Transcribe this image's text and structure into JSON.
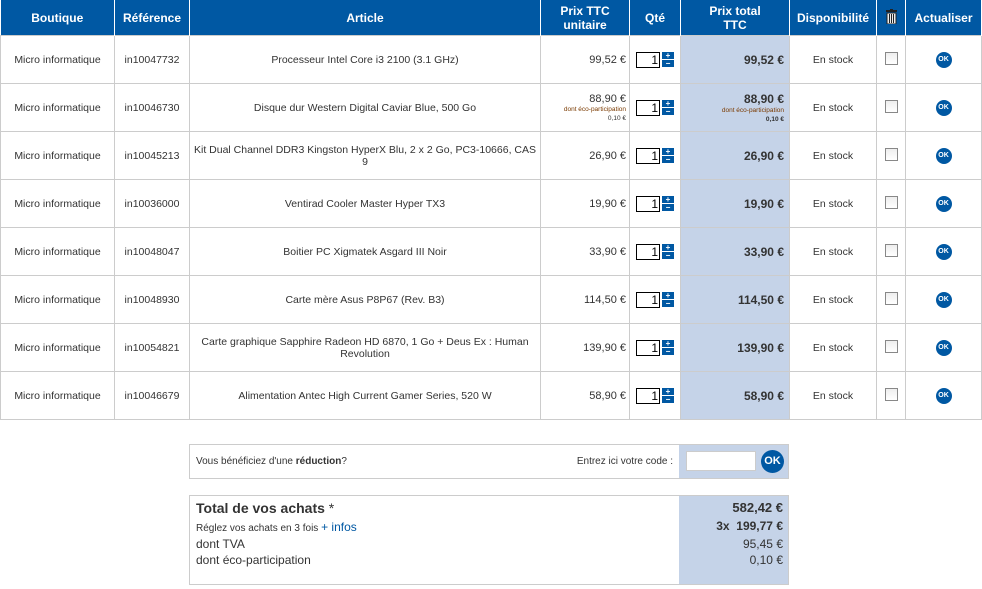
{
  "headers": {
    "boutique": "Boutique",
    "reference": "Référence",
    "article": "Article",
    "unit_price_1": "Prix TTC",
    "unit_price_2": "unitaire",
    "qty": "Qté",
    "total_1": "Prix total",
    "total_2": "TTC",
    "availability": "Disponibilité",
    "trash_icon": "trash-icon",
    "update": "Actualiser"
  },
  "rows": [
    {
      "shop": "Micro informatique",
      "ref": "in10047732",
      "article": "Processeur Intel Core i3 2100 (3.1 GHz)",
      "unit": "99,52 €",
      "qty": "1",
      "total": "99,52 €",
      "stock": "En stock"
    },
    {
      "shop": "Micro informatique",
      "ref": "in10046730",
      "article": "Disque dur Western Digital Caviar Blue, 500 Go",
      "unit": "88,90 €",
      "eco_label": "dont éco-participation",
      "eco_value": "0,10 €",
      "qty": "1",
      "total": "88,90 €",
      "stock": "En stock"
    },
    {
      "shop": "Micro informatique",
      "ref": "in10045213",
      "article": "Kit Dual Channel DDR3 Kingston HyperX Blu, 2 x 2 Go, PC3-10666, CAS 9",
      "unit": "26,90 €",
      "qty": "1",
      "total": "26,90 €",
      "stock": "En stock"
    },
    {
      "shop": "Micro informatique",
      "ref": "in10036000",
      "article": "Ventirad Cooler Master Hyper TX3",
      "unit": "19,90 €",
      "qty": "1",
      "total": "19,90 €",
      "stock": "En stock"
    },
    {
      "shop": "Micro informatique",
      "ref": "in10048047",
      "article": "Boitier PC Xigmatek Asgard III Noir",
      "unit": "33,90 €",
      "qty": "1",
      "total": "33,90 €",
      "stock": "En stock"
    },
    {
      "shop": "Micro informatique",
      "ref": "in10048930",
      "article": "Carte mère Asus P8P67 (Rev. B3)",
      "unit": "114,50 €",
      "qty": "1",
      "total": "114,50 €",
      "stock": "En stock"
    },
    {
      "shop": "Micro informatique",
      "ref": "in10054821",
      "article": "Carte graphique Sapphire Radeon HD 6870, 1 Go + Deus Ex : Human Revolution",
      "unit": "139,90 €",
      "qty": "1",
      "total": "139,90 €",
      "stock": "En stock"
    },
    {
      "shop": "Micro informatique",
      "ref": "in10046679",
      "article": "Alimentation Antec High Current Gamer Series, 520 W",
      "unit": "58,90 €",
      "qty": "1",
      "total": "58,90 €",
      "stock": "En stock"
    }
  ],
  "buttons": {
    "plus": "+",
    "minus": "−",
    "ok": "OK"
  },
  "discount": {
    "question_prefix": "Vous bénéficiez d'une ",
    "question_bold": "réduction",
    "question_suffix": "?",
    "code_label": "Entrez ici votre code :",
    "code_value": ""
  },
  "totals": {
    "title": "Total de vos achats",
    "asterisk": "*",
    "total": "582,42 €",
    "installments_text": "Réglez vos achats en 3 fois",
    "installments_link": "+ infos",
    "installments_count": "3x",
    "installments_value": "199,77 €",
    "vat_label": "dont TVA",
    "vat_value": "95,45 €",
    "eco_label": "dont éco-participation",
    "eco_value": "0,10 €"
  },
  "colors": {
    "header": "#0058a3",
    "highlight": "#c5d3e8"
  }
}
